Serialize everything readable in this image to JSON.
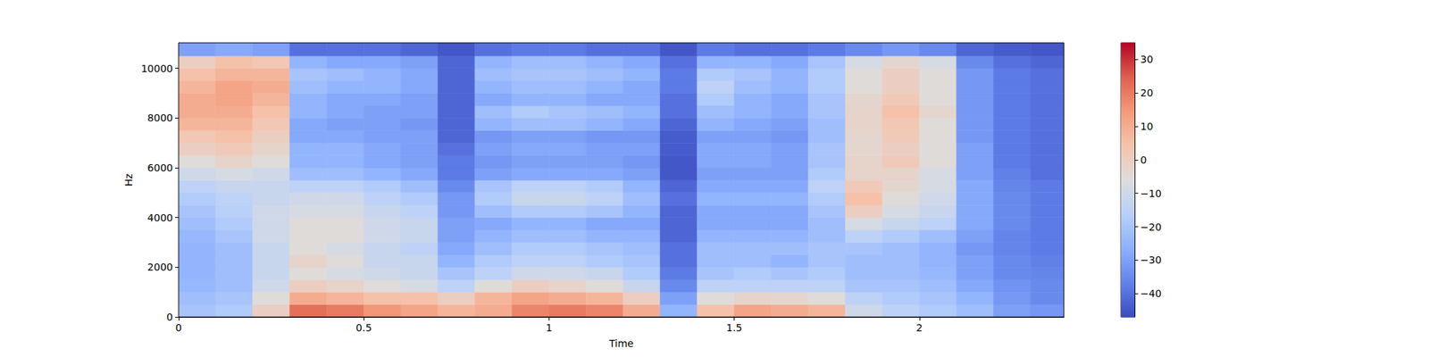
{
  "chart_data": {
    "type": "heatmap",
    "x_label": "Time",
    "y_label": "Hz",
    "xlim": [
      0,
      2.39
    ],
    "xticks": [
      0,
      0.5,
      1,
      1.5,
      2
    ],
    "ylim": [
      0,
      11025
    ],
    "yticks": [
      0,
      2000,
      4000,
      6000,
      8000,
      10000
    ],
    "time_edges": [
      0,
      0.1,
      0.2,
      0.3,
      0.4,
      0.5,
      0.6,
      0.7,
      0.8,
      0.9,
      1.0,
      1.1,
      1.2,
      1.3,
      1.4,
      1.5,
      1.6,
      1.7,
      1.8,
      1.9,
      2.0,
      2.1,
      2.2,
      2.3,
      2.39
    ],
    "freq_edges": [
      0,
      500,
      1000,
      1500,
      2000,
      2500,
      3000,
      3500,
      4000,
      4500,
      5000,
      5500,
      6000,
      6500,
      7000,
      7500,
      8000,
      8500,
      9000,
      9500,
      10000,
      10500,
      11025
    ],
    "values": [
      [
        -20,
        -18,
        0,
        22,
        20,
        15,
        12,
        8,
        10,
        18,
        20,
        18,
        10,
        -25,
        5,
        12,
        10,
        8,
        -10,
        -15,
        -18,
        -22,
        -30,
        -32
      ],
      [
        -22,
        -20,
        -5,
        10,
        8,
        5,
        5,
        0,
        8,
        12,
        10,
        8,
        0,
        -30,
        -5,
        -2,
        -3,
        -5,
        -15,
        -18,
        -20,
        -25,
        -32,
        -35
      ],
      [
        -24,
        -22,
        -10,
        0,
        -2,
        -5,
        -8,
        -15,
        -5,
        0,
        -2,
        -5,
        -12,
        -35,
        -15,
        -15,
        -15,
        -15,
        -20,
        -20,
        -22,
        -28,
        -33,
        -35
      ],
      [
        -25,
        -22,
        -12,
        -5,
        -8,
        -10,
        -12,
        -20,
        -15,
        -10,
        -10,
        -12,
        -18,
        -38,
        -20,
        -18,
        -20,
        -18,
        -22,
        -22,
        -24,
        -30,
        -35,
        -36
      ],
      [
        -25,
        -22,
        -12,
        -2,
        -5,
        -12,
        -12,
        -25,
        -18,
        -15,
        -15,
        -18,
        -20,
        -40,
        -22,
        -22,
        -25,
        -20,
        -22,
        -22,
        -25,
        -30,
        -35,
        -37
      ],
      [
        -25,
        -22,
        -12,
        -5,
        -8,
        -12,
        -15,
        -28,
        -22,
        -18,
        -18,
        -20,
        -22,
        -40,
        -22,
        -22,
        -22,
        -20,
        -20,
        -22,
        -25,
        -32,
        -36,
        -38
      ],
      [
        -24,
        -20,
        -10,
        -5,
        -5,
        -10,
        -12,
        -30,
        -25,
        -22,
        -22,
        -25,
        -25,
        -42,
        -25,
        -25,
        -25,
        -22,
        -15,
        -18,
        -22,
        -30,
        -36,
        -38
      ],
      [
        -22,
        -18,
        -10,
        -5,
        -5,
        -10,
        -12,
        -30,
        -28,
        -25,
        -25,
        -28,
        -28,
        -42,
        -28,
        -28,
        -28,
        -22,
        -8,
        -12,
        -15,
        -28,
        -35,
        -38
      ],
      [
        -20,
        -16,
        -10,
        -8,
        -8,
        -12,
        -15,
        -32,
        -22,
        -18,
        -18,
        -20,
        -25,
        -42,
        -28,
        -28,
        -28,
        -20,
        0,
        -8,
        -12,
        -28,
        -35,
        -38
      ],
      [
        -18,
        -15,
        -12,
        -10,
        -10,
        -15,
        -18,
        -32,
        -18,
        -12,
        -12,
        -15,
        -22,
        -40,
        -25,
        -25,
        -25,
        -18,
        5,
        -5,
        -10,
        -28,
        -35,
        -38
      ],
      [
        -15,
        -12,
        -12,
        -15,
        -15,
        -18,
        -22,
        -35,
        -20,
        -15,
        -15,
        -18,
        -25,
        -42,
        -28,
        -28,
        -28,
        -15,
        2,
        -3,
        -8,
        -28,
        -36,
        -38
      ],
      [
        -10,
        -8,
        -10,
        -22,
        -22,
        -25,
        -28,
        -38,
        -30,
        -28,
        -28,
        -28,
        -30,
        -45,
        -30,
        -30,
        -30,
        -18,
        -2,
        -2,
        -8,
        -30,
        -37,
        -40
      ],
      [
        -5,
        -2,
        -5,
        -25,
        -25,
        -28,
        -30,
        -38,
        -32,
        -30,
        -30,
        -30,
        -32,
        -45,
        -28,
        -28,
        -30,
        -20,
        -2,
        2,
        -5,
        -30,
        -38,
        -40
      ],
      [
        0,
        2,
        -2,
        -25,
        -25,
        -28,
        -30,
        -40,
        -30,
        -28,
        -28,
        -30,
        -30,
        -44,
        -28,
        -28,
        -30,
        -20,
        -3,
        0,
        -5,
        -30,
        -38,
        -40
      ],
      [
        3,
        5,
        0,
        -28,
        -28,
        -30,
        -30,
        -42,
        -32,
        -30,
        -30,
        -32,
        -32,
        -44,
        -30,
        -30,
        -32,
        -22,
        -3,
        2,
        -5,
        -32,
        -38,
        -40
      ],
      [
        8,
        8,
        3,
        -28,
        -30,
        -30,
        -32,
        -42,
        -25,
        -22,
        -22,
        -25,
        -28,
        -42,
        -25,
        -28,
        -30,
        -22,
        -2,
        3,
        -5,
        -32,
        -38,
        -40
      ],
      [
        10,
        10,
        5,
        -25,
        -28,
        -30,
        -30,
        -42,
        -22,
        -18,
        -20,
        -22,
        -25,
        -40,
        -22,
        -25,
        -28,
        -20,
        -2,
        5,
        -3,
        -32,
        -38,
        -40
      ],
      [
        10,
        12,
        8,
        -25,
        -28,
        -28,
        -30,
        -42,
        -28,
        -25,
        -25,
        -28,
        -28,
        -40,
        -18,
        -25,
        -28,
        -20,
        -3,
        2,
        -5,
        -32,
        -38,
        -40
      ],
      [
        8,
        12,
        10,
        -22,
        -25,
        -25,
        -28,
        -42,
        -25,
        -22,
        -22,
        -25,
        -28,
        -38,
        -15,
        -22,
        -25,
        -18,
        -5,
        0,
        -5,
        -32,
        -38,
        -40
      ],
      [
        5,
        8,
        8,
        -20,
        -22,
        -25,
        -28,
        -42,
        -22,
        -20,
        -20,
        -22,
        -25,
        -38,
        -18,
        -20,
        -25,
        -18,
        -5,
        0,
        -5,
        -32,
        -38,
        -40
      ],
      [
        0,
        5,
        3,
        -25,
        -28,
        -28,
        -30,
        -42,
        -25,
        -22,
        -22,
        -25,
        -28,
        -40,
        -25,
        -25,
        -28,
        -20,
        -8,
        -3,
        -8,
        -35,
        -40,
        -42
      ],
      [
        -30,
        -28,
        -30,
        -40,
        -40,
        -40,
        -42,
        -45,
        -40,
        -38,
        -38,
        -40,
        -40,
        -45,
        -38,
        -40,
        -40,
        -38,
        -35,
        -32,
        -35,
        -42,
        -44,
        -45
      ]
    ],
    "colorbar": {
      "range": [
        -47,
        35
      ],
      "ticks": [
        {
          "value": -40,
          "label": "−40"
        },
        {
          "value": -30,
          "label": "−30"
        },
        {
          "value": -20,
          "label": "−20"
        },
        {
          "value": -10,
          "label": "−10"
        },
        0,
        10,
        20,
        30
      ]
    }
  }
}
